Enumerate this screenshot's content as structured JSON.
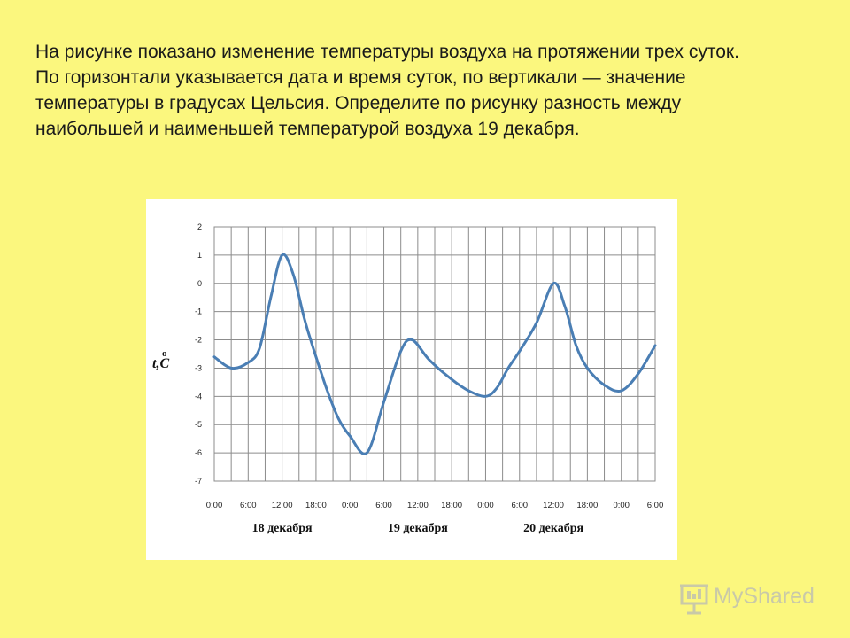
{
  "task": {
    "lines": [
      "На рисунке показано изменение температуры воздуха на протяжении трех суток.",
      "По горизонтали указывается дата и время суток, по вертикали — значение",
      "температуры в градусах Цельсия. Определите по рисунку разность между",
      "наибольшей и наименьшей температурой воздуха 19 декабря."
    ]
  },
  "chart_data": {
    "type": "line",
    "ylabel": "t,°C",
    "ylabel_main": "t,C",
    "ylabel_degree": "o",
    "ylim": [
      -7,
      2
    ],
    "y_ticks": [
      2,
      1,
      0,
      -1,
      -2,
      -3,
      -4,
      -5,
      -6,
      -7
    ],
    "x_ticks": [
      "0:00",
      "6:00",
      "12:00",
      "18:00",
      "0:00",
      "6:00",
      "12:00",
      "18:00",
      "0:00",
      "6:00",
      "12:00",
      "18:00",
      "0:00",
      "6:00"
    ],
    "x_hours": [
      0,
      6,
      12,
      18,
      24,
      30,
      36,
      42,
      48,
      54,
      60,
      66,
      72,
      78
    ],
    "xlim_hours": [
      0,
      78
    ],
    "day_labels": [
      {
        "text": "18 декабря",
        "center_hour": 12
      },
      {
        "text": "19 декабря",
        "center_hour": 36
      },
      {
        "text": "20 декабря",
        "center_hour": 60
      }
    ],
    "grid": true,
    "line_color": "#4a7eb4",
    "series": [
      {
        "points": [
          [
            0,
            -2.6
          ],
          [
            3,
            -3.0
          ],
          [
            6,
            -2.8
          ],
          [
            8,
            -2.3
          ],
          [
            10,
            -0.5
          ],
          [
            12,
            1.0
          ],
          [
            14,
            0.3
          ],
          [
            16,
            -1.3
          ],
          [
            18,
            -2.6
          ],
          [
            20,
            -3.8
          ],
          [
            22,
            -4.8
          ],
          [
            24,
            -5.4
          ],
          [
            27,
            -6.0
          ],
          [
            30,
            -4.2
          ],
          [
            33,
            -2.4
          ],
          [
            35,
            -2.0
          ],
          [
            38,
            -2.7
          ],
          [
            42,
            -3.4
          ],
          [
            45,
            -3.8
          ],
          [
            48,
            -4.0
          ],
          [
            50,
            -3.7
          ],
          [
            52,
            -3.0
          ],
          [
            54,
            -2.4
          ],
          [
            57,
            -1.4
          ],
          [
            60,
            0.0
          ],
          [
            62,
            -0.8
          ],
          [
            64,
            -2.2
          ],
          [
            66,
            -3.0
          ],
          [
            69,
            -3.6
          ],
          [
            72,
            -3.8
          ],
          [
            75,
            -3.2
          ],
          [
            78,
            -2.2
          ]
        ]
      }
    ]
  },
  "logo": {
    "text": "MyShared"
  }
}
